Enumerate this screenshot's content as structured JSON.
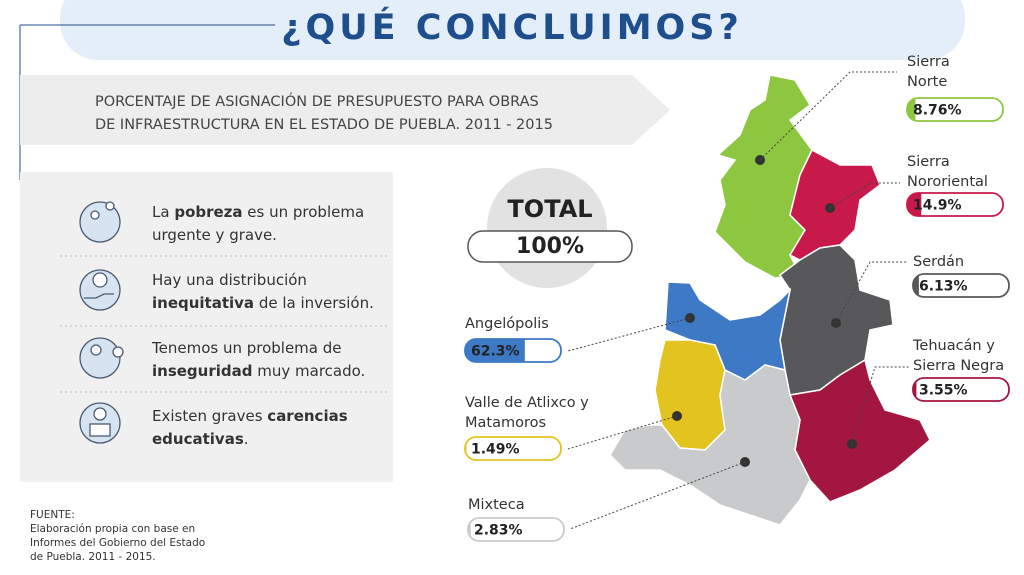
{
  "header": {
    "title": "¿QUÉ CONCLUIMOS?"
  },
  "subtitle": [
    "PORCENTAJE DE ASIGNACIÓN DE PRESUPUESTO PARA OBRAS",
    "DE INFRAESTRUCTURA EN EL ESTADO DE PUEBLA. 2011 - 2015"
  ],
  "total": {
    "label": "TOTAL",
    "value": 100,
    "value_label": "100%"
  },
  "conclusions": [
    [
      [
        {
          "text": "La "
        },
        {
          "text": "pobreza",
          "bold": true
        },
        {
          "text": " es un problema"
        }
      ],
      [
        {
          "text": "urgente y grave."
        }
      ]
    ],
    [
      [
        {
          "text": "Hay una distribución"
        }
      ],
      [
        {
          "text": "inequitativa",
          "bold": true
        },
        {
          "text": " de la inversión."
        }
      ]
    ],
    [
      [
        {
          "text": "Tenemos un problema de"
        }
      ],
      [
        {
          "text": "inseguridad",
          "bold": true
        },
        {
          "text": " muy marcado."
        }
      ]
    ],
    [
      [
        {
          "text": "Existen graves "
        },
        {
          "text": "carencias",
          "bold": true
        }
      ],
      [
        {
          "text": "educativas",
          "bold": true
        },
        {
          "text": "."
        }
      ]
    ]
  ],
  "regions": [
    {
      "name_lines": [
        "Sierra",
        "Norte"
      ],
      "value": 8.76,
      "value_label": "8.76%",
      "color": "#8dc63f"
    },
    {
      "name_lines": [
        "Sierra",
        "Nororiental"
      ],
      "value": 14.9,
      "value_label": "14.9%",
      "color": "#c8194b"
    },
    {
      "name_lines": [
        "Serdán"
      ],
      "value": 6.13,
      "value_label": "6.13%",
      "color": "#58585a"
    },
    {
      "name_lines": [
        "Tehuacán y",
        "Sierra Negra"
      ],
      "value": 3.55,
      "value_label": "3.55%",
      "color": "#a3163f"
    },
    {
      "name_lines": [
        "Angelópolis"
      ],
      "value": 62.3,
      "value_label": "62.3%",
      "color": "#3d79c5"
    },
    {
      "name_lines": [
        "Valle de Atlixco y",
        "Matamoros"
      ],
      "value": 1.49,
      "value_label": "1.49%",
      "color": "#e3c320"
    },
    {
      "name_lines": [
        "Mixteca"
      ],
      "value": 2.83,
      "value_label": "2.83%",
      "color": "#c9cacb"
    }
  ],
  "source": [
    "FUENTE:",
    "Elaboración propia con base en",
    "Informes del Gobierno del Estado",
    "de Puebla. 2011 - 2015."
  ]
}
